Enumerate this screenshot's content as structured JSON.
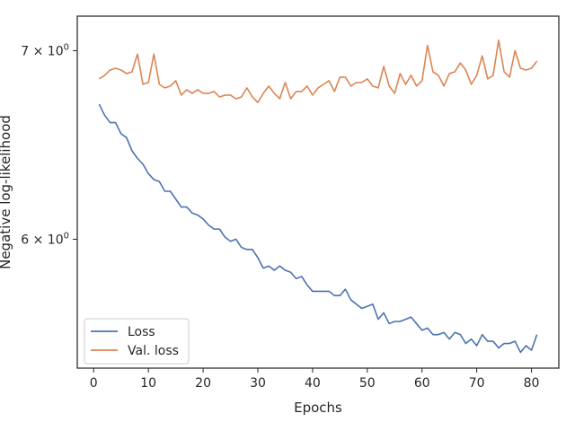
{
  "chart_data": {
    "type": "line",
    "xlabel": "Epochs",
    "ylabel": "Negative log-likelihood",
    "yscale": "log",
    "xlim": [
      -3,
      85
    ],
    "ylim": [
      5.4,
      7.2
    ],
    "grid": false,
    "legend_placement": "bottom-left",
    "x_ticks": [
      0,
      10,
      20,
      30,
      40,
      50,
      60,
      70,
      80
    ],
    "x_tick_labels": [
      "0",
      "10",
      "20",
      "30",
      "40",
      "50",
      "60",
      "70",
      "80"
    ],
    "y_ticks": [
      6,
      7
    ],
    "y_tick_labels": [
      {
        "base": "6 × 10",
        "exp": "0"
      },
      {
        "base": "7 × 10",
        "exp": "0"
      }
    ],
    "x": [
      1,
      2,
      3,
      4,
      5,
      6,
      7,
      8,
      9,
      10,
      11,
      12,
      13,
      14,
      15,
      16,
      17,
      18,
      19,
      20,
      21,
      22,
      23,
      24,
      25,
      26,
      27,
      28,
      29,
      30,
      31,
      32,
      33,
      34,
      35,
      36,
      37,
      38,
      39,
      40,
      41,
      42,
      43,
      44,
      45,
      46,
      47,
      48,
      49,
      50,
      51,
      52,
      53,
      54,
      55,
      56,
      57,
      58,
      59,
      60,
      61,
      62,
      63,
      64,
      65,
      66,
      67,
      68,
      69,
      70,
      71,
      72,
      73,
      74,
      75,
      76,
      77,
      78,
      79,
      80,
      81
    ],
    "series": [
      {
        "name": "Loss",
        "color": "#4c72b0",
        "values": [
          6.7,
          6.64,
          6.6,
          6.6,
          6.54,
          6.52,
          6.45,
          6.41,
          6.38,
          6.33,
          6.3,
          6.29,
          6.24,
          6.24,
          6.2,
          6.16,
          6.16,
          6.13,
          6.12,
          6.1,
          6.07,
          6.05,
          6.05,
          6.01,
          5.99,
          6.0,
          5.96,
          5.95,
          5.95,
          5.91,
          5.86,
          5.87,
          5.85,
          5.87,
          5.85,
          5.84,
          5.81,
          5.82,
          5.78,
          5.75,
          5.75,
          5.75,
          5.75,
          5.73,
          5.73,
          5.76,
          5.71,
          5.69,
          5.67,
          5.68,
          5.69,
          5.62,
          5.65,
          5.6,
          5.61,
          5.61,
          5.62,
          5.63,
          5.6,
          5.57,
          5.58,
          5.55,
          5.55,
          5.56,
          5.53,
          5.56,
          5.55,
          5.51,
          5.53,
          5.5,
          5.55,
          5.52,
          5.52,
          5.49,
          5.51,
          5.51,
          5.52,
          5.47,
          5.5,
          5.48,
          5.55
        ]
      },
      {
        "name": "Val. loss",
        "color": "#dd8452",
        "values": [
          6.84,
          6.86,
          6.89,
          6.9,
          6.89,
          6.87,
          6.88,
          6.98,
          6.81,
          6.82,
          6.98,
          6.81,
          6.79,
          6.8,
          6.83,
          6.75,
          6.78,
          6.76,
          6.78,
          6.76,
          6.76,
          6.77,
          6.74,
          6.75,
          6.75,
          6.73,
          6.74,
          6.79,
          6.74,
          6.71,
          6.76,
          6.8,
          6.76,
          6.73,
          6.82,
          6.73,
          6.77,
          6.77,
          6.8,
          6.75,
          6.79,
          6.81,
          6.83,
          6.77,
          6.85,
          6.85,
          6.8,
          6.82,
          6.82,
          6.84,
          6.8,
          6.79,
          6.91,
          6.8,
          6.76,
          6.87,
          6.81,
          6.86,
          6.8,
          6.83,
          7.03,
          6.88,
          6.86,
          6.8,
          6.87,
          6.88,
          6.93,
          6.89,
          6.81,
          6.86,
          6.97,
          6.84,
          6.86,
          7.06,
          6.88,
          6.85,
          7.0,
          6.9,
          6.89,
          6.9,
          6.94
        ]
      }
    ]
  }
}
